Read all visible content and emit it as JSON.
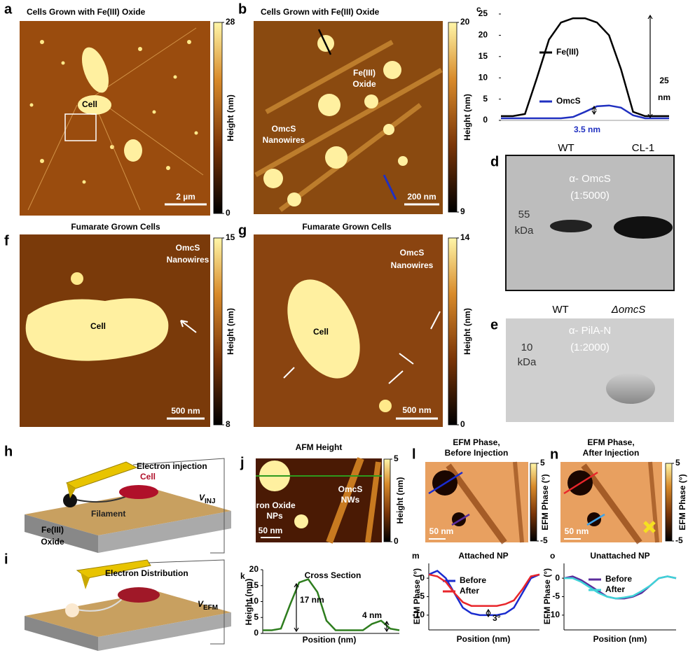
{
  "panels": {
    "a": {
      "letter": "a",
      "title": "Cells Grown with Fe(III)  Oxide",
      "cell_label": "Cell",
      "scale_bar": "2 µm",
      "colorbar": {
        "label": "Height (nm)",
        "ticks": [
          0,
          28
        ]
      }
    },
    "b": {
      "letter": "b",
      "title": "Cells Grown with Fe(III)  Oxide",
      "oxide_label": [
        "Fe(III)",
        "Oxide"
      ],
      "nanowire_label": [
        "OmcS",
        "Nanowires"
      ],
      "scale_bar": "200 nm",
      "colorbar": {
        "label": "Height (nm)",
        "ticks": [
          9,
          20
        ]
      }
    },
    "d": {
      "letter": "d",
      "lanes": [
        "WT",
        "CL-1"
      ],
      "antibody": "α- OmcS",
      "dilution": "(1:5000)",
      "marker": [
        "55",
        "kDa"
      ]
    },
    "e": {
      "letter": "e",
      "lanes": [
        "WT",
        "ΔomcS"
      ],
      "antibody": "α- PilA-N",
      "dilution": "(1:2000)",
      "marker": [
        "10",
        "kDa"
      ]
    },
    "f": {
      "letter": "f",
      "title": "Fumarate Grown Cells",
      "cell_label": "Cell",
      "nanowire_label": [
        "OmcS",
        "Nanowires"
      ],
      "scale_bar": "500 nm",
      "colorbar": {
        "label": "Height (nm)",
        "ticks": [
          8,
          15
        ]
      }
    },
    "g": {
      "letter": "g",
      "title": "Fumarate Grown Cells",
      "cell_label": "Cell",
      "nanowire_label": [
        "OmcS",
        "Nanowires"
      ],
      "scale_bar": "500 nm",
      "colorbar": {
        "label": "Height (nm)",
        "ticks": [
          0,
          14
        ]
      }
    },
    "h": {
      "letter": "h",
      "caption": "Electron injection",
      "cell_label": "Cell",
      "filament_label": "Filament",
      "oxide_label": [
        "Fe(III)",
        "Oxide"
      ],
      "voltage": {
        "symbol": "V",
        "subscript": "INJ"
      }
    },
    "i": {
      "letter": "i",
      "caption": "Electron Distribution",
      "voltage": {
        "symbol": "V",
        "subscript": "EFM"
      }
    },
    "j": {
      "letter": "j",
      "title": "AFM Height",
      "nanowire_label": [
        "OmcS",
        "NWs"
      ],
      "particle_label": [
        "Iron Oxide",
        "NPs"
      ],
      "scale_bar": "50 nm",
      "colorbar": {
        "label": "Height (nm)",
        "ticks": [
          0,
          5
        ]
      }
    },
    "l": {
      "letter": "l",
      "title": [
        "EFM Phase,",
        "Before Injection"
      ],
      "scale_bar": "50 nm",
      "colorbar": {
        "label": "EFM Phase (°)",
        "ticks": [
          -5,
          5
        ]
      }
    },
    "n": {
      "letter": "n",
      "title": [
        "EFM Phase,",
        "After Injection"
      ],
      "scale_bar": "50 nm",
      "colorbar": {
        "label": "EFM Phase (°)",
        "ticks": [
          -5,
          5
        ]
      }
    }
  },
  "chart_data": [
    {
      "type": "line",
      "letter": "c",
      "categories": [
        null,
        null,
        null,
        null,
        null,
        null,
        null,
        null,
        null,
        null,
        null,
        null,
        null,
        null,
        null
      ],
      "series": [
        {
          "name": "Fe(III)",
          "color": "#000000",
          "values": [
            1,
            1,
            1.5,
            10,
            19,
            23,
            24,
            24,
            23,
            20,
            12,
            2,
            1,
            1,
            1
          ]
        },
        {
          "name": "OmcS",
          "color": "#2030c0",
          "values": [
            0.5,
            0.5,
            0.5,
            0.5,
            0.5,
            0.5,
            0.8,
            2,
            3.3,
            3.5,
            3,
            1.2,
            0.5,
            0.5,
            0.5
          ]
        }
      ],
      "ylim": [
        0,
        25
      ],
      "yticks": [
        0,
        5,
        10,
        15,
        20,
        25
      ],
      "annotations": [
        "25",
        "nm",
        "3.5 nm"
      ]
    },
    {
      "type": "line",
      "letter": "k",
      "title": "Cross Section",
      "x_label": "Position (nm)",
      "y_label": "Height (nm)",
      "categories": [
        null,
        null,
        null,
        null,
        null,
        null,
        null,
        null,
        null,
        null,
        null,
        null,
        null,
        null,
        null,
        null
      ],
      "series": [
        {
          "name": null,
          "color": "#2e7d1e",
          "values": [
            1,
            1,
            1.5,
            9,
            16,
            17,
            13,
            4,
            1,
            1,
            1,
            1,
            3,
            4,
            1.5,
            1
          ]
        }
      ],
      "ylim": [
        0,
        20
      ],
      "yticks": [
        0,
        5,
        10,
        15,
        20
      ],
      "annotations": [
        "17 nm",
        "4 nm"
      ]
    },
    {
      "type": "line",
      "letter": "m",
      "title": "Attached NP",
      "x_label": "Position (nm)",
      "y_label": "EFM Phase (°)",
      "categories": [
        null,
        null,
        null,
        null,
        null,
        null,
        null,
        null,
        null,
        null,
        null,
        null,
        null,
        null
      ],
      "series": [
        {
          "name": "Before",
          "color": "#1a2ccf",
          "values": [
            1,
            2,
            0,
            -4,
            -8,
            -9.5,
            -10,
            -10,
            -10,
            -9.5,
            -8,
            -4,
            0,
            1
          ]
        },
        {
          "name": "After",
          "color": "#e8262b",
          "values": [
            1,
            0.5,
            -1,
            -4,
            -6.5,
            -7.5,
            -7.5,
            -7.5,
            -7.5,
            -7,
            -6,
            -3,
            0.5,
            1
          ]
        }
      ],
      "ylim": [
        -14,
        4
      ],
      "yticks": [
        -10,
        -5,
        0
      ],
      "annotations": [
        "3°"
      ]
    },
    {
      "type": "line",
      "letter": "o",
      "title": "Unattached NP",
      "x_label": "Position (nm)",
      "y_label": "EFM Phase (°)",
      "categories": [
        null,
        null,
        null,
        null,
        null,
        null,
        null,
        null,
        null,
        null,
        null,
        null,
        null,
        null
      ],
      "series": [
        {
          "name": "Before",
          "color": "#5b2d9c",
          "values": [
            0,
            0.5,
            -0.5,
            -2,
            -3.5,
            -5,
            -5.5,
            -5.5,
            -5,
            -4,
            -2,
            0,
            0.5,
            0
          ]
        },
        {
          "name": "After",
          "color": "#3fd3d8",
          "values": [
            0,
            0,
            -1,
            -2.5,
            -4,
            -5,
            -5.5,
            -5.2,
            -4.8,
            -3.5,
            -2,
            0,
            0.5,
            0
          ]
        }
      ],
      "ylim": [
        -14,
        4
      ],
      "yticks": [
        -10,
        -5,
        0
      ]
    }
  ]
}
